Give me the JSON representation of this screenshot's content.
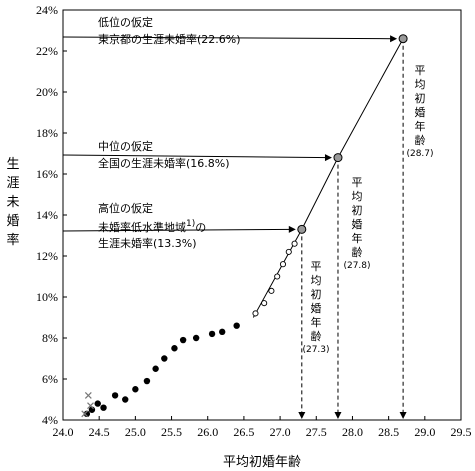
{
  "chart_data": {
    "type": "scatter",
    "title": "",
    "xlabel": "平均初婚年齢",
    "ylabel": "生涯未婚率",
    "xlim": [
      24.0,
      29.5
    ],
    "ylim": [
      4,
      24
    ],
    "x_ticks": [
      "24.0",
      "24.5",
      "25.0",
      "25.5",
      "26.0",
      "26.5",
      "27.0",
      "27.5",
      "28.0",
      "28.5",
      "29.0",
      "29.5"
    ],
    "y_ticks": [
      "4%",
      "6%",
      "8%",
      "10%",
      "12%",
      "14%",
      "16%",
      "18%",
      "20%",
      "22%",
      "24%"
    ],
    "series": [
      {
        "marker": "filled-circle",
        "points": [
          [
            24.33,
            4.3
          ],
          [
            24.4,
            4.5
          ],
          [
            24.48,
            4.8
          ],
          [
            24.56,
            4.6
          ],
          [
            24.72,
            5.2
          ],
          [
            24.86,
            5.0
          ],
          [
            25.0,
            5.5
          ],
          [
            25.16,
            5.9
          ],
          [
            25.28,
            6.5
          ],
          [
            25.4,
            7.0
          ],
          [
            25.54,
            7.5
          ],
          [
            25.66,
            7.9
          ],
          [
            25.84,
            8.0
          ],
          [
            26.06,
            8.2
          ],
          [
            26.2,
            8.3
          ],
          [
            26.4,
            8.6
          ]
        ]
      },
      {
        "marker": "open-circle",
        "points": [
          [
            26.66,
            9.2
          ],
          [
            26.78,
            9.7
          ],
          [
            26.88,
            10.3
          ],
          [
            26.96,
            11.0
          ],
          [
            27.04,
            11.6
          ],
          [
            27.12,
            12.2
          ],
          [
            27.2,
            12.6
          ]
        ]
      },
      {
        "marker": "cross",
        "points": [
          [
            24.35,
            5.2
          ],
          [
            24.38,
            4.7
          ],
          [
            24.3,
            4.3
          ]
        ]
      }
    ],
    "fitted_line": [
      [
        26.63,
        9.0
      ],
      [
        27.3,
        13.3
      ],
      [
        27.8,
        16.8
      ],
      [
        28.7,
        22.6
      ]
    ],
    "scenarios": [
      {
        "x": 27.3,
        "y": 13.3,
        "label_lines": [
          "高位の仮定",
          "未婚率低水準地域",
          "の",
          "生涯未婚率(13.3%)"
        ],
        "sup": "1)",
        "age_vertical": "平均初婚年齢",
        "age_value": "(27.3)"
      },
      {
        "x": 27.8,
        "y": 16.8,
        "label_lines": [
          "中位の仮定",
          "全国の生涯未婚率(16.8%)"
        ],
        "age_vertical": "平均初婚年齢",
        "age_value": "(27.8)"
      },
      {
        "x": 28.7,
        "y": 22.6,
        "label_lines": [
          "低位の仮定",
          "東京都の生涯未婚率(22.6%)"
        ],
        "age_vertical": "平均初婚年齢",
        "age_value": "(28.7)"
      }
    ]
  }
}
